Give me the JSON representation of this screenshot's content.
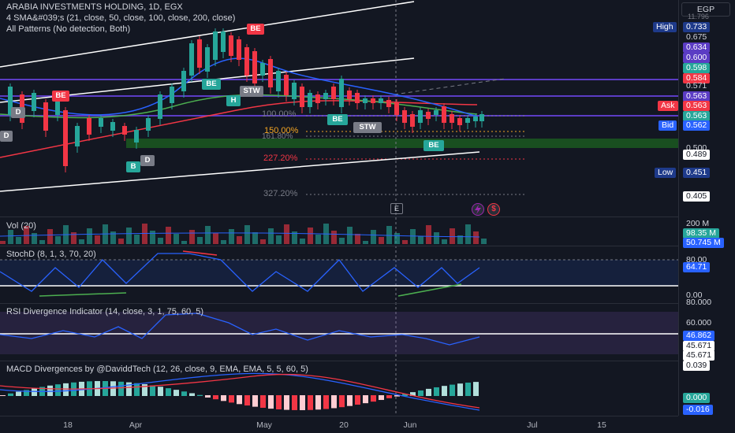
{
  "header": {
    "title": "ARABIA INVESTMENTS HOLDING, 1D, EGX",
    "sma_legend": "4 SMA&#039;s (21, close, 50, close, 100, close, 200, close)",
    "patterns_legend": "All Patterns (No detection, Both)",
    "currency": "EGP"
  },
  "price_scale": {
    "labels": [
      {
        "text": "High",
        "kind": "tag",
        "color": "#1e3a8a"
      },
      {
        "text": "0.733",
        "kind": "box",
        "color": "#1e3a8a"
      },
      {
        "text": "0.675",
        "kind": "plain"
      },
      {
        "text": "0.634",
        "kind": "box",
        "color": "#5b3cc4"
      },
      {
        "text": "0.600",
        "kind": "box",
        "color": "#5b3cc4"
      },
      {
        "text": "0.598",
        "kind": "box",
        "color": "#26a69a"
      },
      {
        "text": "0.584",
        "kind": "box",
        "color": "#f23645"
      },
      {
        "text": "0.571",
        "kind": "plain"
      },
      {
        "text": "0.563",
        "kind": "box",
        "color": "#5b3cc4"
      },
      {
        "text": "Ask",
        "kind": "tag",
        "color": "#f23645"
      },
      {
        "text": "0.563",
        "kind": "box",
        "color": "#f23645"
      },
      {
        "text": "0.563",
        "kind": "box",
        "color": "#26a69a"
      },
      {
        "text": "Bid",
        "kind": "tag",
        "color": "#2962ff"
      },
      {
        "text": "0.562",
        "kind": "box",
        "color": "#2962ff"
      },
      {
        "text": "0.500",
        "kind": "plain"
      },
      {
        "text": "0.489",
        "kind": "box",
        "color": "#ffffff"
      },
      {
        "text": "Low",
        "kind": "tag",
        "color": "#1e3a8a"
      },
      {
        "text": "0.451",
        "kind": "box",
        "color": "#1e3a8a"
      },
      {
        "text": "0.405",
        "kind": "box",
        "color": "#ffffff"
      },
      {
        "text": "11.796",
        "kind": "plain"
      }
    ]
  },
  "fib_levels": [
    {
      "text": "100.00%",
      "color": "#787b86"
    },
    {
      "text": "150.00%",
      "color": "#f5a623"
    },
    {
      "text": "161.80%",
      "color": "#787b86"
    },
    {
      "text": "227.20%",
      "color": "#f23645"
    },
    {
      "text": "327.20%",
      "color": "#787b86"
    }
  ],
  "patterns": [
    {
      "text": "BE",
      "color": "#f23645"
    },
    {
      "text": "BE",
      "color": "#f23645"
    },
    {
      "text": "BE",
      "color": "#26a69a"
    },
    {
      "text": "STW",
      "color": "#787b86"
    },
    {
      "text": "H",
      "color": "#26a69a"
    },
    {
      "text": "D",
      "color": "#787b86"
    },
    {
      "text": "D",
      "color": "#787b86"
    },
    {
      "text": "B",
      "color": "#26a69a"
    },
    {
      "text": "D",
      "color": "#787b86"
    },
    {
      "text": "BE",
      "color": "#26a69a"
    },
    {
      "text": "STW",
      "color": "#787b86"
    },
    {
      "text": "BE",
      "color": "#26a69a"
    }
  ],
  "volume": {
    "legend": "Vol (20)",
    "scale_top": "200 M",
    "value": "98.35 M",
    "ma": "50.745 M"
  },
  "stoch": {
    "legend": "StochD (8, 1, 3, 70, 20)",
    "scale_80": "80.00",
    "value": "64.71",
    "scale_0": "0.00"
  },
  "rsi": {
    "legend": "RSI Divergence Indicator (14, close, 3, 1, 75, 60, 5)",
    "scale_80": "80.000",
    "scale_60": "60.000",
    "value": "46.862",
    "v2": "45.671",
    "v3": "45.671"
  },
  "macd": {
    "legend": "MACD Divergences by @DaviddTech (12, 26, close, 9, EMA, EMA, 5, 5, 60, 5)",
    "scale_top": "0.039",
    "hist": "0.000",
    "line": "-0.016"
  },
  "time_axis": [
    "18",
    "Apr",
    "May",
    "20",
    "Jun",
    "Jul",
    "15"
  ],
  "markers": {
    "e_label": "E"
  },
  "colors": {
    "bg": "#131722",
    "up": "#26a69a",
    "down": "#f23645",
    "accent": "#2962ff"
  }
}
